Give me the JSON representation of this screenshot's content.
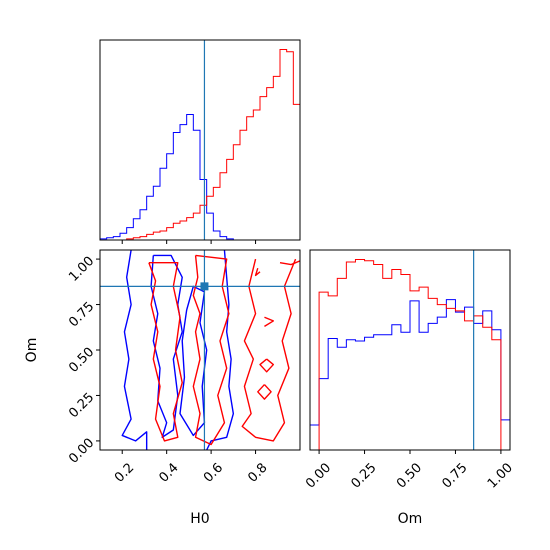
{
  "chart_data": {
    "type": "corner",
    "parameters": [
      "H0",
      "Om"
    ],
    "truth": {
      "H0": 0.57,
      "Om": 0.85
    },
    "colors": {
      "series_a": "#0000ff",
      "series_b": "#ff0000",
      "truth": "#1f77b4"
    },
    "panels": [
      {
        "id": "hist_H0",
        "type": "step-histogram",
        "x_range": [
          0.1,
          1.0
        ],
        "x_ticks": [
          0.2,
          0.4,
          0.6,
          0.8
        ],
        "y_ticks_visible": false,
        "series": [
          {
            "color": "#0000ff",
            "bin_edges": [
              0.1,
              0.13,
              0.16,
              0.19,
              0.22,
              0.25,
              0.28,
              0.31,
              0.34,
              0.37,
              0.4,
              0.43,
              0.46,
              0.49,
              0.52,
              0.55,
              0.58,
              0.61,
              0.64,
              0.67,
              0.7,
              0.73,
              0.76,
              0.79,
              0.82,
              0.85,
              0.88,
              0.91,
              0.94,
              0.97,
              1.0
            ],
            "counts": [
              1,
              2,
              3,
              6,
              11,
              19,
              27,
              39,
              48,
              64,
              77,
              96,
              103,
              112,
              98,
              54,
              24,
              8,
              3,
              1,
              0,
              0,
              0,
              0,
              0,
              0,
              0,
              0,
              0,
              0
            ]
          },
          {
            "color": "#ff0000",
            "bin_edges": [
              0.1,
              0.13,
              0.16,
              0.19,
              0.22,
              0.25,
              0.28,
              0.31,
              0.34,
              0.37,
              0.4,
              0.43,
              0.46,
              0.49,
              0.52,
              0.55,
              0.58,
              0.61,
              0.64,
              0.67,
              0.7,
              0.73,
              0.76,
              0.79,
              0.82,
              0.85,
              0.88,
              0.91,
              0.94,
              0.97,
              1.0
            ],
            "counts": [
              0,
              0,
              0,
              0,
              1,
              2,
              3,
              5,
              7,
              8,
              11,
              15,
              17,
              20,
              24,
              31,
              39,
              47,
              60,
              72,
              85,
              98,
              110,
              116,
              128,
              136,
              146,
              170,
              168,
              121
            ]
          }
        ]
      },
      {
        "id": "contour_H0_Om",
        "type": "contour",
        "x_range": [
          0.1,
          1.0
        ],
        "y_range": [
          -0.05,
          1.05
        ],
        "x_ticks": [
          0.2,
          0.4,
          0.6,
          0.8
        ],
        "y_ticks": [
          0.0,
          0.25,
          0.5,
          0.75,
          1.0
        ],
        "x_tick_labels": [
          "0.2",
          "0.4",
          "0.6",
          "0.8"
        ],
        "y_tick_labels": [
          "0.00",
          "0.25",
          "0.50",
          "0.75",
          "1.00"
        ],
        "xlabel": "H0",
        "ylabel": "Om",
        "series": [
          {
            "color": "#0000ff",
            "contours": [
              [
                [
                  0.24,
                  1.05
                ],
                [
                  0.22,
                  0.9
                ],
                [
                  0.24,
                  0.75
                ],
                [
                  0.21,
                  0.6
                ],
                [
                  0.23,
                  0.45
                ],
                [
                  0.21,
                  0.3
                ],
                [
                  0.24,
                  0.12
                ],
                [
                  0.2,
                  0.03
                ],
                [
                  0.26,
                  0.0
                ],
                [
                  0.31,
                  0.05
                ],
                [
                  0.31,
                  -0.05
                ]
              ],
              [
                [
                  0.66,
                  1.05
                ],
                [
                  0.67,
                  0.9
                ],
                [
                  0.68,
                  0.75
                ],
                [
                  0.67,
                  0.6
                ],
                [
                  0.69,
                  0.45
                ],
                [
                  0.68,
                  0.3
                ],
                [
                  0.7,
                  0.15
                ],
                [
                  0.67,
                  0.02
                ],
                [
                  0.6,
                  0.0
                ],
                [
                  0.58,
                  -0.05
                ]
              ],
              [
                [
                  0.34,
                  1.02
                ],
                [
                  0.33,
                  0.85
                ],
                [
                  0.36,
                  0.7
                ],
                [
                  0.34,
                  0.55
                ],
                [
                  0.37,
                  0.4
                ],
                [
                  0.36,
                  0.22
                ],
                [
                  0.4,
                  0.1
                ],
                [
                  0.38,
                  0.02
                ],
                [
                  0.43,
                  0.06
                ],
                [
                  0.45,
                  0.25
                ],
                [
                  0.43,
                  0.45
                ],
                [
                  0.47,
                  0.6
                ],
                [
                  0.45,
                  0.75
                ],
                [
                  0.47,
                  0.9
                ],
                [
                  0.42,
                  1.02
                ],
                [
                  0.34,
                  1.02
                ]
              ],
              [
                [
                  0.49,
                  0.72
                ],
                [
                  0.47,
                  0.55
                ],
                [
                  0.48,
                  0.35
                ],
                [
                  0.46,
                  0.15
                ],
                [
                  0.52,
                  0.03
                ],
                [
                  0.57,
                  0.1
                ],
                [
                  0.56,
                  0.3
                ],
                [
                  0.58,
                  0.5
                ],
                [
                  0.55,
                  0.65
                ],
                [
                  0.57,
                  0.82
                ],
                [
                  0.52,
                  0.85
                ],
                [
                  0.49,
                  0.72
                ]
              ]
            ]
          },
          {
            "color": "#ff0000",
            "contours": [
              [
                [
                  0.32,
                  0.98
                ],
                [
                  0.35,
                  0.88
                ],
                [
                  0.33,
                  0.75
                ],
                [
                  0.36,
                  0.6
                ],
                [
                  0.34,
                  0.45
                ],
                [
                  0.37,
                  0.3
                ],
                [
                  0.35,
                  0.12
                ],
                [
                  0.39,
                  0.0
                ],
                [
                  0.45,
                  0.02
                ],
                [
                  0.43,
                  0.15
                ],
                [
                  0.47,
                  0.32
                ],
                [
                  0.44,
                  0.5
                ],
                [
                  0.46,
                  0.68
                ],
                [
                  0.43,
                  0.85
                ],
                [
                  0.45,
                  0.98
                ],
                [
                  0.32,
                  0.98
                ]
              ],
              [
                [
                  0.53,
                  1.02
                ],
                [
                  0.54,
                  0.9
                ],
                [
                  0.52,
                  0.8
                ],
                [
                  0.55,
                  0.7
                ],
                [
                  0.53,
                  0.6
                ],
                [
                  0.55,
                  0.45
                ],
                [
                  0.52,
                  0.3
                ],
                [
                  0.55,
                  0.15
                ],
                [
                  0.53,
                  0.02
                ],
                [
                  0.6,
                  -0.02
                ],
                [
                  0.66,
                  0.1
                ],
                [
                  0.63,
                  0.25
                ],
                [
                  0.67,
                  0.4
                ],
                [
                  0.64,
                  0.55
                ],
                [
                  0.68,
                  0.7
                ],
                [
                  0.65,
                  0.85
                ],
                [
                  0.67,
                  1.0
                ],
                [
                  0.53,
                  1.02
                ]
              ],
              [
                [
                  0.8,
                  1.0
                ],
                [
                  0.77,
                  0.85
                ],
                [
                  0.8,
                  0.7
                ],
                [
                  0.75,
                  0.55
                ],
                [
                  0.79,
                  0.45
                ],
                [
                  0.75,
                  0.3
                ],
                [
                  0.78,
                  0.15
                ],
                [
                  0.74,
                  0.08
                ],
                [
                  0.8,
                  0.02
                ],
                [
                  0.88,
                  0.0
                ],
                [
                  0.93,
                  0.1
                ],
                [
                  0.9,
                  0.25
                ],
                [
                  0.95,
                  0.4
                ],
                [
                  0.92,
                  0.55
                ],
                [
                  0.96,
                  0.7
                ],
                [
                  0.93,
                  0.85
                ],
                [
                  0.98,
                  1.0
                ]
              ],
              [
                [
                  0.84,
                  0.68
                ],
                [
                  0.88,
                  0.66
                ],
                [
                  0.84,
                  0.63
                ]
              ],
              [
                [
                  0.85,
                  0.45
                ],
                [
                  0.88,
                  0.42
                ],
                [
                  0.85,
                  0.38
                ],
                [
                  0.82,
                  0.42
                ],
                [
                  0.85,
                  0.45
                ]
              ],
              [
                [
                  0.84,
                  0.31
                ],
                [
                  0.87,
                  0.27
                ],
                [
                  0.84,
                  0.23
                ],
                [
                  0.81,
                  0.27
                ],
                [
                  0.84,
                  0.31
                ]
              ],
              [
                [
                  0.91,
                  0.98
                ],
                [
                  0.96,
                  0.97
                ],
                [
                  1.0,
                  0.99
                ]
              ],
              [
                [
                  0.81,
                  0.95
                ],
                [
                  0.8,
                  0.91
                ],
                [
                  0.82,
                  0.93
                ]
              ]
            ]
          }
        ]
      },
      {
        "id": "hist_Om",
        "type": "step-histogram",
        "x_range": [
          -0.05,
          1.05
        ],
        "x_ticks": [
          0.0,
          0.25,
          0.5,
          0.75,
          1.0
        ],
        "x_tick_labels": [
          "0.00",
          "0.25",
          "0.50",
          "0.75",
          "1.00"
        ],
        "xlabel": "Om",
        "y_ticks_visible": false,
        "series": [
          {
            "color": "#0000ff",
            "bin_edges": [
              -0.05,
              0.0,
              0.05,
              0.1,
              0.15,
              0.2,
              0.25,
              0.3,
              0.35,
              0.4,
              0.45,
              0.5,
              0.55,
              0.6,
              0.65,
              0.7,
              0.75,
              0.8,
              0.85,
              0.9,
              0.95,
              1.0,
              1.05
            ],
            "counts": [
              20,
              57,
              89,
              82,
              88,
              87,
              90,
              92,
              92,
              100,
              94,
              119,
              94,
              101,
              106,
              120,
              110,
              114,
              101,
              111,
              96,
              24
            ]
          },
          {
            "color": "#ff0000",
            "bin_edges": [
              0.0,
              0.05,
              0.1,
              0.15,
              0.2,
              0.25,
              0.3,
              0.35,
              0.4,
              0.45,
              0.5,
              0.55,
              0.6,
              0.65,
              0.7,
              0.75,
              0.8,
              0.85,
              0.9,
              0.95,
              1.0
            ],
            "counts": [
              126,
              123,
              137,
              150,
              152,
              151,
              148,
              137,
              144,
              140,
              127,
              130,
              121,
              116,
              113,
              111,
              103,
              107,
              98,
              88
            ]
          }
        ]
      }
    ]
  }
}
